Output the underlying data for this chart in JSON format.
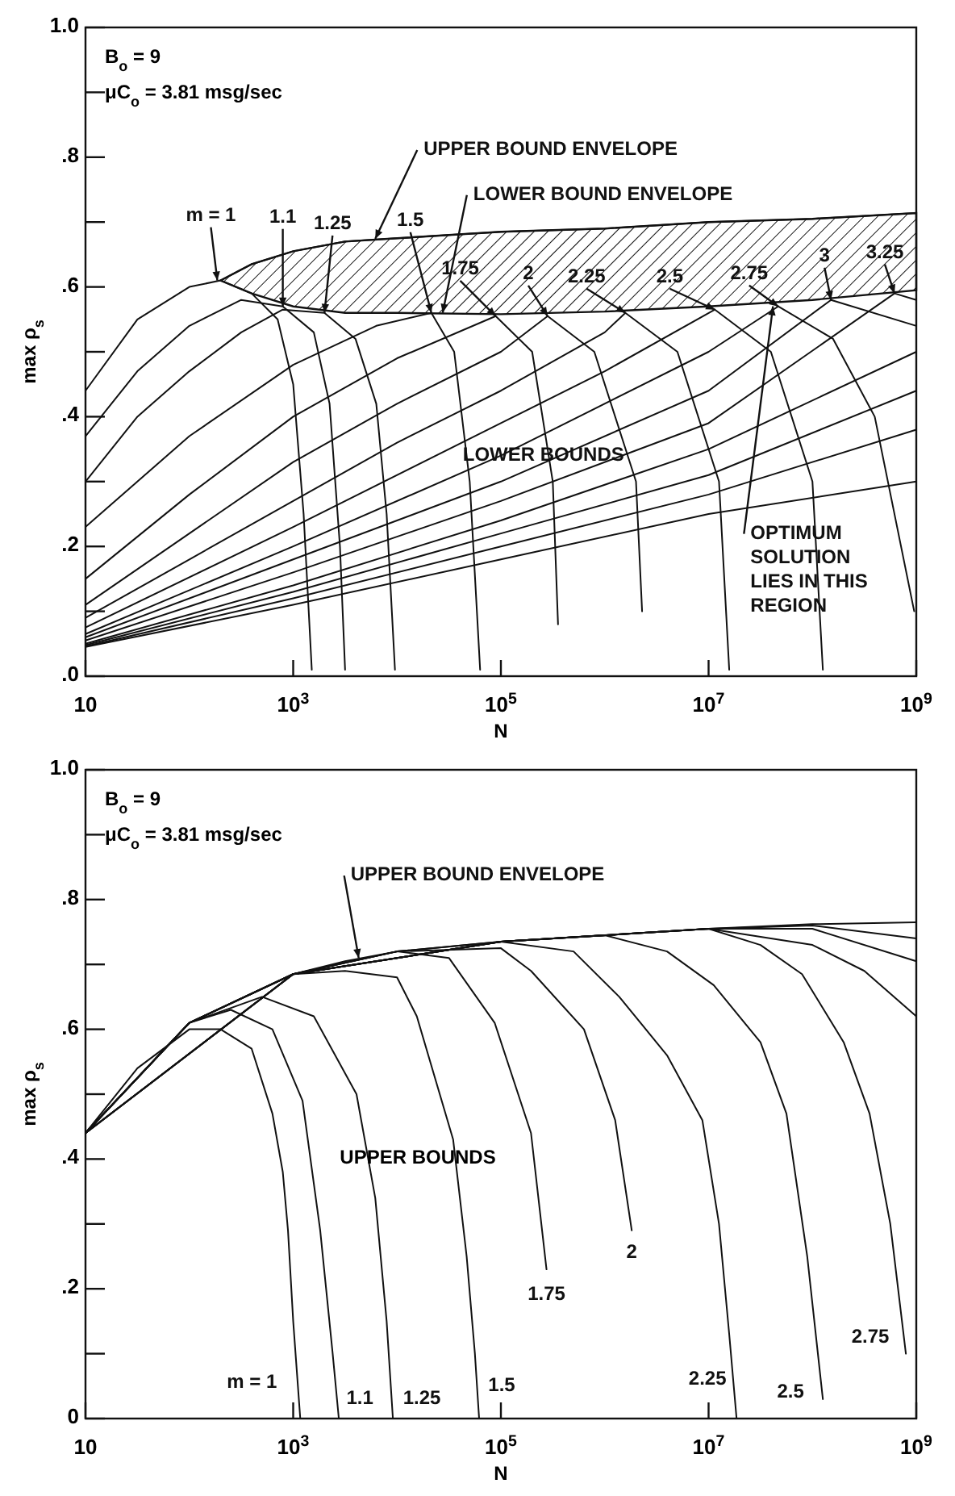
{
  "chart_data": [
    {
      "type": "line",
      "log": "x",
      "xlim": [
        10,
        1000000000.0
      ],
      "ylim": [
        0,
        1
      ],
      "xlabel": "N",
      "ylabel": "max ρ$_{s}$",
      "xticks": [
        {
          "value": 10,
          "label": "10"
        },
        {
          "value": 1000,
          "label": "10$^{3}$"
        },
        {
          "value": 100000,
          "label": "10$^{5}$"
        },
        {
          "value": 10000000,
          "label": "10$^{7}$"
        },
        {
          "value": 1000000000,
          "label": "10$^{9}$"
        }
      ],
      "yticks": [
        {
          "value": 0,
          "label": ".0"
        },
        {
          "value": 0.1,
          "label": null
        },
        {
          "value": 0.2,
          "label": ".2"
        },
        {
          "value": 0.3,
          "label": null
        },
        {
          "value": 0.4,
          "label": ".4"
        },
        {
          "value": 0.5,
          "label": null
        },
        {
          "value": 0.6,
          "label": ".6"
        },
        {
          "value": 0.7,
          "label": null
        },
        {
          "value": 0.8,
          "label": ".8"
        },
        {
          "value": 0.9,
          "label": null
        },
        {
          "value": 1,
          "label": "1.0"
        }
      ],
      "annotations": [
        "B$_{o}$  =  9",
        "μC$_{o}$ = 3.81 msg/sec",
        {
          "text": "UPPER BOUND ENVELOPE",
          "x": 6170,
          "y": 0.674
        },
        {
          "text": "LOWER BOUND ENVELOPE",
          "x": 27500,
          "y": 0.56
        },
        {
          "text": "m = 1",
          "x": 186,
          "y": 0.61
        },
        {
          "text": "1.1",
          "x": 794,
          "y": 0.57
        },
        {
          "text": "1.25",
          "x": 2000,
          "y": 0.56
        },
        {
          "text": "1.5",
          "x": 21400,
          "y": 0.56
        },
        {
          "text": "1.75",
          "x": 89100,
          "y": 0.555
        },
        {
          "text": "2",
          "x": 282000,
          "y": 0.555
        },
        {
          "text": "2.25",
          "x": 1580000,
          "y": 0.56
        },
        {
          "text": "2.5",
          "x": 11500000,
          "y": 0.565
        },
        {
          "text": "2.75",
          "x": 46800000,
          "y": 0.57
        },
        {
          "text": "3",
          "x": 151000000,
          "y": 0.58
        },
        {
          "text": "3.25",
          "x": 617000000,
          "y": 0.59
        },
        {
          "text": "LOWER BOUNDS",
          "x": 257000,
          "y": 0.34
        },
        {
          "text": "OPTIMUM SOLUTION LIES IN THIS REGION",
          "x": 41700000,
          "y": 0.57
        }
      ],
      "series": [
        {
          "color": "#111111",
          "x": [
            10.0,
            31.6,
            100.0,
            200.0,
            398.0,
            708.0,
            1000.0,
            1260.0,
            1510.0
          ],
          "values": [
            0.44,
            0.55,
            0.6,
            0.61,
            0.59,
            0.55,
            0.45,
            0.25,
            0.01
          ]
        },
        {
          "color": "#111111",
          "x": [
            10.0,
            31.6,
            100.0,
            316.0,
            794.0,
            1580.0,
            2240.0,
            2820.0,
            3160.0
          ],
          "values": [
            0.37,
            0.47,
            0.54,
            0.58,
            0.57,
            0.53,
            0.42,
            0.2,
            0.01
          ]
        },
        {
          "color": "#111111",
          "x": [
            10.0,
            31.6,
            100.0,
            316.0,
            794.0,
            2000.0,
            3980.0,
            6310.0,
            7940.0,
            9550.0
          ],
          "values": [
            0.3,
            0.4,
            0.47,
            0.53,
            0.565,
            0.56,
            0.52,
            0.42,
            0.25,
            0.01
          ]
        },
        {
          "color": "#111111",
          "x": [
            10.0,
            100.0,
            1000.0,
            6310.0,
            21400.0,
            35500.0,
            50100.0,
            63100.0
          ],
          "values": [
            0.23,
            0.37,
            0.48,
            0.54,
            0.56,
            0.5,
            0.3,
            0.01
          ]
        },
        {
          "color": "#111111",
          "x": [
            10.0,
            100.0,
            1000.0,
            10000.0,
            89100.0,
            200000.0,
            316000.0,
            355000.0
          ],
          "values": [
            0.15,
            0.28,
            0.4,
            0.49,
            0.555,
            0.5,
            0.3,
            0.08
          ]
        },
        {
          "color": "#111111",
          "x": [
            10.0,
            100.0,
            1000.0,
            10000.0,
            100000.0,
            282000.0,
            794000.0,
            2000000.0,
            2290000.0
          ],
          "values": [
            0.11,
            0.22,
            0.33,
            0.42,
            0.5,
            0.555,
            0.5,
            0.3,
            0.1
          ]
        },
        {
          "color": "#111111",
          "x": [
            10.0,
            100.0,
            1000.0,
            10000.0,
            100000.0,
            1000000.0,
            1580000.0,
            5010000.0,
            12600000.0,
            15800000.0
          ],
          "values": [
            0.09,
            0.18,
            0.27,
            0.36,
            0.44,
            0.53,
            0.56,
            0.5,
            0.3,
            0.01
          ]
        },
        {
          "color": "#111111",
          "x": [
            10.0,
            1000.0,
            100000.0,
            1000000.0,
            11500000.0,
            39800000.0,
            100000000.0,
            126000000.0
          ],
          "values": [
            0.075,
            0.23,
            0.39,
            0.47,
            0.565,
            0.5,
            0.3,
            0.01
          ]
        },
        {
          "color": "#111111",
          "x": [
            10.0,
            1000.0,
            100000.0,
            10000000.0,
            46800000.0,
            158000000.0,
            398000000.0,
            955000000.0
          ],
          "values": [
            0.065,
            0.2,
            0.34,
            0.5,
            0.57,
            0.52,
            0.4,
            0.1
          ]
        },
        {
          "color": "#111111",
          "x": [
            10.0,
            1000.0,
            100000.0,
            10000000.0,
            151000000.0,
            1000000000.0
          ],
          "values": [
            0.06,
            0.18,
            0.3,
            0.44,
            0.58,
            0.54
          ]
        },
        {
          "color": "#111111",
          "x": [
            10.0,
            1000.0,
            100000.0,
            10000000.0,
            617000000.0,
            1000000000.0
          ],
          "values": [
            0.055,
            0.16,
            0.27,
            0.39,
            0.59,
            0.58
          ]
        },
        {
          "color": "#111111",
          "x": [
            10.0,
            1000.0,
            100000.0,
            10000000.0,
            1000000000.0
          ],
          "values": [
            0.05,
            0.14,
            0.24,
            0.35,
            0.5
          ]
        },
        {
          "color": "#111111",
          "x": [
            10.0,
            1000.0,
            100000.0,
            10000000.0,
            1000000000.0
          ],
          "values": [
            0.048,
            0.13,
            0.22,
            0.31,
            0.44
          ]
        },
        {
          "color": "#111111",
          "x": [
            10.0,
            1000.0,
            100000.0,
            10000000.0,
            1000000000.0
          ],
          "values": [
            0.046,
            0.12,
            0.2,
            0.28,
            0.38
          ]
        },
        {
          "color": "#111111",
          "x": [
            10.0,
            1000.0,
            100000.0,
            10000000.0,
            1000000000.0
          ],
          "values": [
            0.045,
            0.11,
            0.18,
            0.25,
            0.3
          ]
        },
        {
          "color": "#111111",
          "x": [
            200.0,
            398.0,
            1000.0,
            3160.0,
            10000.0,
            100000.0,
            1000000.0,
            10000000.0,
            100000000.0,
            1000000000.0
          ],
          "values": [
            0.61,
            0.635,
            0.655,
            0.67,
            0.675,
            0.685,
            0.69,
            0.7,
            0.705,
            0.714
          ],
          "lower": [
            0.61,
            0.59,
            0.57,
            0.56,
            0.56,
            0.558,
            0.562,
            0.57,
            0.58,
            0.595
          ],
          "upper": [
            0.61,
            0.635,
            0.655,
            0.67,
            0.675,
            0.685,
            0.69,
            0.7,
            0.705,
            0.714
          ]
        }
      ]
    },
    {
      "type": "line",
      "log": "x",
      "xlim": [
        10,
        1000000000.0
      ],
      "ylim": [
        0,
        1
      ],
      "xlabel": "N",
      "ylabel": "max ρ$_{s}$",
      "xticks": [
        {
          "value": 10,
          "label": "10"
        },
        {
          "value": 1000,
          "label": "10$^{3}$"
        },
        {
          "value": 100000,
          "label": "10$^{5}$"
        },
        {
          "value": 10000000,
          "label": "10$^{7}$"
        },
        {
          "value": 1000000000,
          "label": "10$^{9}$"
        }
      ],
      "yticks": [
        {
          "value": 0,
          "label": "0"
        },
        {
          "value": 0.1,
          "label": null
        },
        {
          "value": 0.2,
          "label": ".2"
        },
        {
          "value": 0.3,
          "label": null
        },
        {
          "value": 0.4,
          "label": ".4"
        },
        {
          "value": 0.5,
          "label": null
        },
        {
          "value": 0.6,
          "label": ".6"
        },
        {
          "value": 0.7,
          "label": null
        },
        {
          "value": 0.8,
          "label": ".8"
        },
        {
          "value": 0.9,
          "label": null
        },
        {
          "value": 1,
          "label": "1.0"
        }
      ],
      "annotations": [
        "B$_{o}$ = 9",
        "μC$_{o}$ = 3.81 msg/sec",
        {
          "text": "UPPER BOUND ENVELOPE",
          "x": 4270,
          "y": 0.71
        },
        "UPPER BOUNDS",
        {
          "text": "m = 1",
          "x": 1170,
          "y": 0
        },
        {
          "text": "1.1",
          "x": 2750,
          "y": 0
        },
        {
          "text": "1.25",
          "x": 9120,
          "y": 0
        },
        {
          "text": "1.5",
          "x": 61700,
          "y": 0
        },
        {
          "text": "1.75",
          "x": 275000,
          "y": 0.23
        },
        {
          "text": "2",
          "x": 1820000,
          "y": 0.29
        },
        {
          "text": "2.25",
          "x": 18600000,
          "y": 0
        },
        {
          "text": "2.5",
          "x": 126000000,
          "y": 0.03
        },
        {
          "text": "2.75",
          "x": 794000000,
          "y": 0.1
        }
      ],
      "series": [
        {
          "color": "#111111",
          "x": [
            10.0,
            31.6,
            100.0,
            200.0,
            398.0,
            631.0,
            794.0,
            891.0,
            1000.0,
            1170.0
          ],
          "values": [
            0.44,
            0.54,
            0.6,
            0.6,
            0.57,
            0.47,
            0.38,
            0.29,
            0.15,
            0
          ]
        },
        {
          "color": "#111111",
          "x": [
            10.0,
            100.0,
            251.0,
            631.0,
            1230.0,
            1820.0,
            2400.0,
            2750.0
          ],
          "values": [
            0.44,
            0.61,
            0.63,
            0.6,
            0.49,
            0.29,
            0.1,
            0
          ]
        },
        {
          "color": "#111111",
          "x": [
            10.0,
            100.0,
            501.0,
            1580.0,
            4070.0,
            6170.0,
            7940.0,
            9120.0
          ],
          "values": [
            0.44,
            0.61,
            0.65,
            0.62,
            0.5,
            0.34,
            0.15,
            0
          ]
        },
        {
          "color": "#111111",
          "x": [
            10.0,
            100.0,
            1000.0,
            3160.0,
            10000.0,
            15500.0,
            34700.0,
            46800.0,
            56200.0,
            61700.0
          ],
          "values": [
            0.44,
            0.61,
            0.685,
            0.69,
            0.68,
            0.62,
            0.43,
            0.25,
            0.1,
            0
          ]
        },
        {
          "color": "#111111",
          "x": [
            10.0,
            100.0,
            1000.0,
            10000.0,
            31600.0,
            87100.0,
            195000.0,
            275000.0
          ],
          "values": [
            0.44,
            0.61,
            0.685,
            0.72,
            0.71,
            0.61,
            0.44,
            0.23
          ]
        },
        {
          "color": "#111111",
          "x": [
            10.0,
            100.0,
            1000.0,
            10000.0,
            100000.0,
            195000.0,
            631000.0,
            1260000.0,
            1820000.0
          ],
          "values": [
            0.44,
            0.61,
            0.685,
            0.72,
            0.725,
            0.69,
            0.6,
            0.46,
            0.29
          ]
        },
        {
          "color": "#111111",
          "x": [
            10.0,
            100.0,
            1000.0,
            10000.0,
            100000.0,
            501000.0,
            1380000.0,
            3980000.0,
            8710000.0,
            12600000.0,
            15800000.0,
            18600000.0
          ],
          "values": [
            0.44,
            0.61,
            0.685,
            0.72,
            0.735,
            0.72,
            0.65,
            0.56,
            0.46,
            0.3,
            0.13,
            0
          ]
        },
        {
          "color": "#111111",
          "x": [
            10.0,
            1000.0,
            100000.0,
            1000000.0,
            3980000.0,
            11200000.0,
            31600000.0,
            56200000.0,
            89100000.0,
            126000000.0
          ],
          "values": [
            0.44,
            0.685,
            0.735,
            0.745,
            0.72,
            0.668,
            0.58,
            0.47,
            0.25,
            0.03
          ]
        },
        {
          "color": "#111111",
          "x": [
            10.0,
            1000.0,
            100000.0,
            10000000.0,
            31600000.0,
            79400000.0,
            200000000.0,
            355000000.0,
            562000000.0,
            794000000.0
          ],
          "values": [
            0.44,
            0.685,
            0.735,
            0.755,
            0.73,
            0.685,
            0.58,
            0.47,
            0.3,
            0.1
          ]
        },
        {
          "color": "#111111",
          "x": [
            10.0,
            1000.0,
            100000.0,
            10000000.0,
            100000000.0,
            316000000.0,
            1000000000.0
          ],
          "values": [
            0.44,
            0.685,
            0.735,
            0.755,
            0.73,
            0.69,
            0.62
          ]
        },
        {
          "color": "#111111",
          "x": [
            10.0,
            1000.0,
            100000.0,
            10000000.0,
            100000000.0,
            1000000000.0
          ],
          "values": [
            0.44,
            0.685,
            0.735,
            0.755,
            0.755,
            0.705
          ]
        },
        {
          "color": "#111111",
          "x": [
            10.0,
            1000.0,
            100000.0,
            10000000.0,
            100000000.0,
            1000000000.0
          ],
          "values": [
            0.44,
            0.685,
            0.735,
            0.755,
            0.76,
            0.74
          ]
        },
        {
          "color": "#111111",
          "x": [
            10.0,
            100.0,
            1000.0,
            3160.0,
            10000.0,
            100000.0,
            1000000.0,
            10000000.0,
            100000000.0,
            1000000000.0
          ],
          "values": [
            0.44,
            0.61,
            0.685,
            0.705,
            0.72,
            0.735,
            0.745,
            0.755,
            0.762,
            0.765
          ]
        }
      ]
    }
  ]
}
